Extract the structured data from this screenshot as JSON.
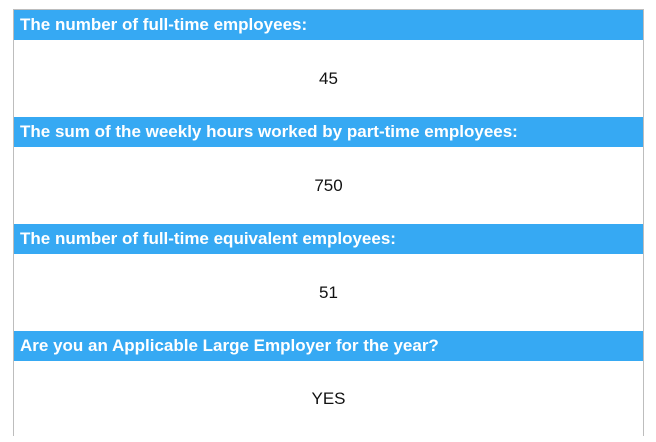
{
  "fields": [
    {
      "label": "The number of full-time employees:",
      "value": "45"
    },
    {
      "label": "The sum of the weekly hours worked by part-time employees:",
      "value": "750"
    },
    {
      "label": "The number of full-time equivalent employees:",
      "value": "51"
    },
    {
      "label": "Are you an Applicable Large Employer for the year?",
      "value": "YES"
    }
  ]
}
